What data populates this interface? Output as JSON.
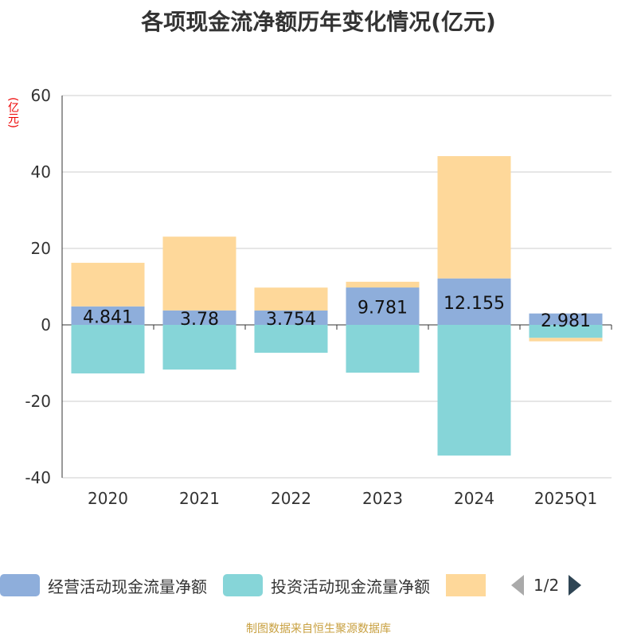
{
  "title": "各项现金流净额历年变化情况(亿元)",
  "unit": "(亿元)",
  "source": "制图数据来自恒生聚源数据库",
  "legend_page": "1/2",
  "chart_data": {
    "type": "bar",
    "stacked": true,
    "categories": [
      "2020",
      "2021",
      "2022",
      "2023",
      "2024",
      "2025Q1"
    ],
    "ylim": [
      -40,
      60
    ],
    "yticks": [
      -40,
      -20,
      0,
      20,
      40,
      60
    ],
    "ylabel": "(亿元)",
    "grid": true,
    "legend_position": "bottom",
    "series": [
      {
        "name": "经营活动现金流量净额",
        "color": "#8eaedb",
        "values": [
          4.841,
          3.78,
          3.754,
          9.781,
          12.155,
          2.981
        ],
        "labels": [
          "4.841",
          "3.78",
          "3.754",
          "9.781",
          "12.155",
          "2.981"
        ]
      },
      {
        "name": "投资活动现金流量净额",
        "color": "#86d5d8",
        "values": [
          -12.7,
          -11.7,
          -7.3,
          -12.5,
          -34.2,
          -3.4
        ]
      },
      {
        "name": "",
        "color": "#fed89a",
        "values": [
          11.4,
          19.3,
          6.0,
          1.5,
          32.0,
          -0.9
        ]
      }
    ]
  }
}
